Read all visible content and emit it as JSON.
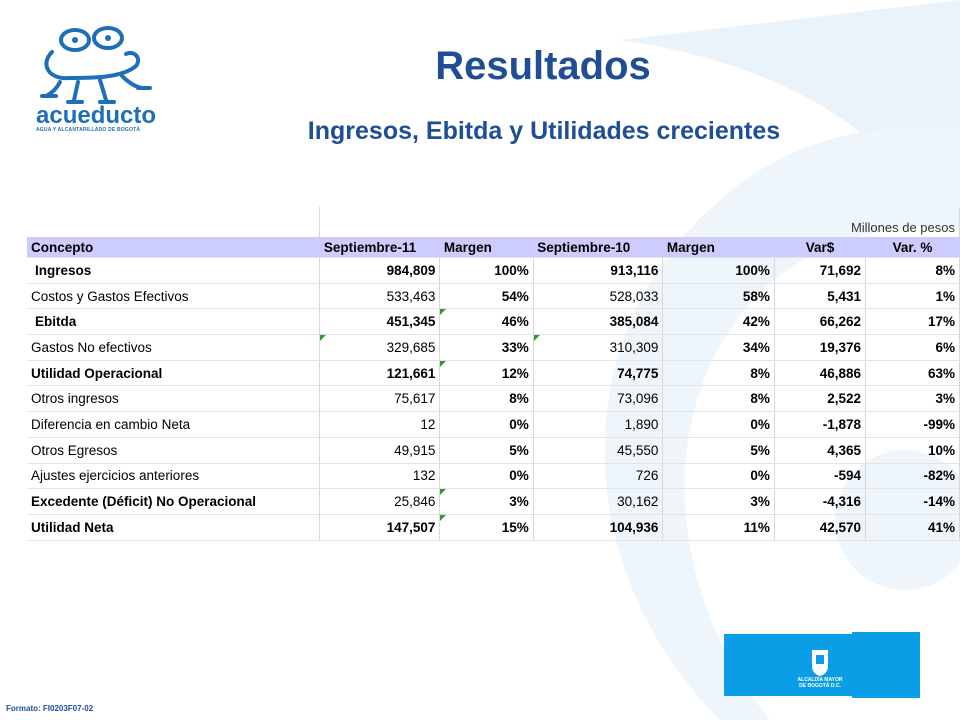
{
  "header": {
    "title": "Resultados",
    "subtitle": "Ingresos, Ebitda y Utilidades crecientes"
  },
  "logo": {
    "word": "acueducto",
    "tagline": "AGUA Y ALCANTARILLADO DE BOGOTÁ"
  },
  "table": {
    "unit_note": "Millones de pesos",
    "headers": [
      "Concepto",
      "Septiembre-11",
      "Margen",
      "Septiembre-10",
      "Margen",
      "Var$",
      "Var. %"
    ],
    "rows": [
      {
        "concepto": " Ingresos",
        "sep11": "984,809",
        "margen11": "100%",
        "sep10": "913,116",
        "margen10": "100%",
        "var": "71,692",
        "varpct": "8%",
        "bold": true
      },
      {
        "concepto": "Costos y Gastos Efectivos",
        "sep11": "533,463",
        "margen11": "54%",
        "sep10": "528,033",
        "margen10": "58%",
        "var": "5,431",
        "varpct": "1%",
        "bold": false
      },
      {
        "concepto": " Ebitda",
        "sep11": "451,345",
        "margen11": "46%",
        "sep10": "385,084",
        "margen10": "42%",
        "var": "66,262",
        "varpct": "17%",
        "bold": true
      },
      {
        "concepto": "Gastos No efectivos",
        "sep11": "329,685",
        "margen11": "33%",
        "sep10": "310,309",
        "margen10": "34%",
        "var": "19,376",
        "varpct": "6%",
        "bold": false
      },
      {
        "concepto": "Utilidad Operacional",
        "sep11": "121,661",
        "margen11": "12%",
        "sep10": "74,775",
        "margen10": "8%",
        "var": "46,886",
        "varpct": "63%",
        "bold": true
      },
      {
        "concepto": "Otros ingresos",
        "sep11": "75,617",
        "margen11": "8%",
        "sep10": "73,096",
        "margen10": "8%",
        "var": "2,522",
        "varpct": "3%",
        "bold": false
      },
      {
        "concepto": "Diferencia en cambio Neta",
        "sep11": "12",
        "margen11": "0%",
        "sep10": "1,890",
        "margen10": "0%",
        "var": "-1,878",
        "varpct": "-99%",
        "bold": false
      },
      {
        "concepto": "Otros Egresos",
        "sep11": "49,915",
        "margen11": "5%",
        "sep10": "45,550",
        "margen10": "5%",
        "var": "4,365",
        "varpct": "10%",
        "bold": false
      },
      {
        "concepto": "Ajustes ejercicios anteriores",
        "sep11": "132",
        "margen11": "0%",
        "sep10": "726",
        "margen10": "0%",
        "var": "-594",
        "varpct": "-82%",
        "bold": false
      },
      {
        "concepto": "Excedente (Déficit) No Operacional",
        "sep11": "25,846",
        "margen11": "3%",
        "sep10": "30,162",
        "margen10": "3%",
        "var": "-4,316",
        "varpct": "-14%",
        "bold": true
      },
      {
        "concepto": "Utilidad Neta",
        "sep11": "147,507",
        "margen11": "15%",
        "sep10": "104,936",
        "margen10": "11%",
        "var": "42,570",
        "varpct": "41%",
        "bold": true
      }
    ]
  },
  "footer": {
    "format_code": "Formato: FI0203F07-02"
  },
  "alcaldia": {
    "line1": "ALCALDÍA MAYOR",
    "line2": "DE BOGOTÁ D.C."
  },
  "colors": {
    "title": "#1f4e96",
    "header_row": "#ccccff",
    "alcaldia_box": "#0b9de6",
    "note_marker": "#2e9b2e"
  }
}
